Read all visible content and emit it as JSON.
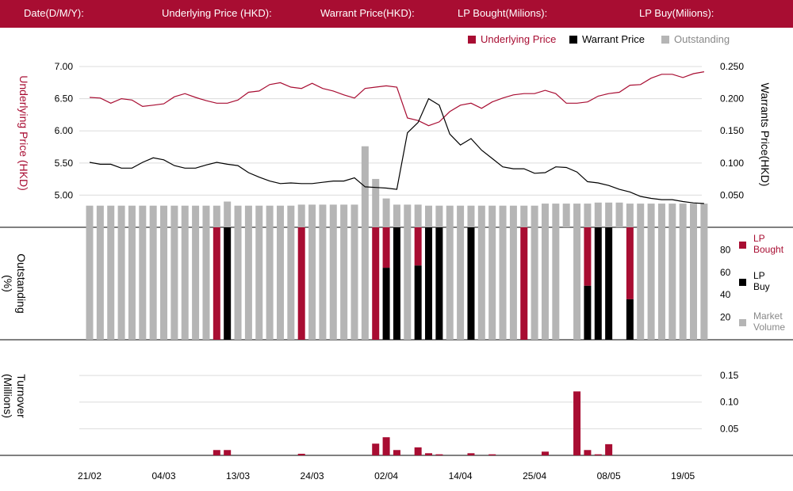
{
  "header": {
    "date_label": "Date(D/M/Y):",
    "underlying_label": "Underlying Price (HKD):",
    "warrant_label": "Warrant  Price(HKD):",
    "lp_bought_label": "LP Bought(Milions):",
    "lp_buy_label": "LP Buy(Milions):"
  },
  "legend": {
    "underlying": "Underlying Price",
    "warrant": "Warrant  Price",
    "outstanding": "Outstanding"
  },
  "colors": {
    "brand": "#a80d32",
    "underlying": "#a80d32",
    "warrant": "#000000",
    "outstanding": "#b5b5b5",
    "lp_bought": "#a80d32",
    "lp_buy": "#000000",
    "market_volume": "#b5b5b5"
  },
  "chart_data": [
    {
      "type": "line",
      "ylabel_left": "Underlying Price (HKD)",
      "ylabel_right": "Warrants  Price(HKD)",
      "yticks_left": [
        "7.00",
        "6.50",
        "6.00",
        "5.50",
        "5.00"
      ],
      "yticks_right": [
        "0.250",
        "0.200",
        "0.150",
        "0.100",
        "0.050"
      ],
      "ylim_left": [
        4.5,
        7.05
      ],
      "ylim_right": [
        0.0,
        0.255
      ],
      "x_ticks": [
        "21/02",
        "04/03",
        "13/03",
        "24/03",
        "02/04",
        "14/04",
        "25/04",
        "08/05",
        "19/05"
      ],
      "x_tick_index": [
        0,
        7,
        14,
        21,
        28,
        35,
        42,
        49,
        56
      ],
      "series": [
        {
          "name": "Underlying Price",
          "axis": "left",
          "values": [
            6.52,
            6.51,
            6.43,
            6.5,
            6.48,
            6.38,
            6.4,
            6.42,
            6.53,
            6.58,
            6.52,
            6.47,
            6.43,
            6.43,
            6.48,
            6.6,
            6.62,
            6.72,
            6.75,
            6.68,
            6.66,
            6.74,
            6.66,
            6.62,
            6.56,
            6.51,
            6.66,
            6.68,
            6.7,
            6.68,
            6.2,
            6.16,
            6.08,
            6.14,
            6.3,
            6.4,
            6.43,
            6.35,
            6.45,
            6.51,
            6.56,
            6.58,
            6.58,
            6.63,
            6.58,
            6.43,
            6.43,
            6.45,
            6.54,
            6.58,
            6.6,
            6.71,
            6.72,
            6.82,
            6.88,
            6.88,
            6.83,
            6.89,
            6.92
          ]
        },
        {
          "name": "Warrant  Price",
          "axis": "right",
          "values": [
            0.101,
            0.098,
            0.098,
            0.092,
            0.092,
            0.101,
            0.108,
            0.105,
            0.096,
            0.092,
            0.092,
            0.097,
            0.101,
            0.098,
            0.096,
            0.085,
            0.078,
            0.072,
            0.068,
            0.069,
            0.068,
            0.068,
            0.07,
            0.072,
            0.072,
            0.077,
            0.063,
            0.062,
            0.061,
            0.059,
            0.147,
            0.163,
            0.2,
            0.19,
            0.145,
            0.128,
            0.138,
            0.12,
            0.107,
            0.094,
            0.091,
            0.091,
            0.084,
            0.085,
            0.094,
            0.093,
            0.086,
            0.071,
            0.069,
            0.065,
            0.059,
            0.055,
            0.048,
            0.045,
            0.043,
            0.043,
            0.04,
            0.038,
            0.037
          ]
        }
      ]
    },
    {
      "type": "bar",
      "title": "Outstanding",
      "categories_count": 59,
      "values": [
        0,
        0,
        0,
        0,
        0,
        0,
        0,
        0,
        0,
        0,
        0,
        0,
        0,
        0,
        19,
        0,
        0,
        0,
        0,
        0,
        0,
        0,
        0,
        0,
        0,
        0,
        0,
        0,
        0,
        0,
        0,
        0,
        0,
        0,
        0,
        0,
        0,
        0,
        0,
        0,
        0,
        0,
        0,
        0,
        0,
        0,
        0,
        0,
        0,
        0,
        0,
        0,
        0,
        0,
        0,
        0,
        0,
        0,
        0
      ],
      "values_abs": [
        21,
        21,
        21,
        21,
        21,
        21,
        21,
        21,
        21,
        21,
        21,
        21,
        21,
        25,
        21,
        21,
        21,
        21,
        21,
        21,
        22,
        22,
        22,
        22,
        22,
        22,
        22,
        28,
        28,
        22,
        22,
        22,
        21,
        21,
        21,
        21,
        21,
        21,
        21,
        21,
        21,
        21,
        21,
        23,
        23,
        23,
        23,
        23,
        24,
        24,
        24,
        23,
        23,
        23,
        23,
        23,
        23,
        23,
        23
      ],
      "extra_tall": {
        "26": 62,
        "27": 37
      }
    },
    {
      "type": "bar",
      "ylabel": "Outstanding (%)",
      "yticks": [
        "80",
        "60",
        "40",
        "20"
      ],
      "ylim": [
        0,
        100
      ],
      "series": [
        {
          "name": "LP Bought",
          "values": [
            0,
            0,
            0,
            0,
            0,
            0,
            0,
            0,
            0,
            0,
            0,
            0,
            100,
            0,
            0,
            0,
            0,
            0,
            0,
            0,
            100,
            0,
            0,
            0,
            0,
            0,
            0,
            100,
            100,
            0,
            0,
            100,
            0,
            0,
            0,
            0,
            0,
            0,
            0,
            0,
            0,
            100,
            0,
            0,
            0,
            0,
            0,
            100,
            0,
            0,
            0,
            100,
            0,
            0,
            0,
            0,
            0,
            0,
            0
          ]
        },
        {
          "name": "LP Buy",
          "values": [
            0,
            0,
            0,
            0,
            0,
            0,
            0,
            0,
            0,
            0,
            0,
            0,
            0,
            100,
            0,
            0,
            0,
            0,
            0,
            0,
            0,
            0,
            0,
            0,
            0,
            0,
            0,
            0,
            64,
            100,
            0,
            66,
            100,
            100,
            0,
            0,
            100,
            0,
            0,
            0,
            0,
            0,
            0,
            0,
            0,
            0,
            0,
            48,
            100,
            100,
            0,
            36,
            0,
            0,
            0,
            0,
            0,
            0,
            0
          ]
        },
        {
          "name": "Market Volume",
          "values": [
            100,
            100,
            100,
            100,
            100,
            100,
            100,
            100,
            100,
            100,
            100,
            100,
            0,
            0,
            100,
            100,
            100,
            100,
            100,
            100,
            0,
            100,
            100,
            100,
            100,
            100,
            100,
            0,
            0,
            0,
            100,
            0,
            0,
            0,
            100,
            100,
            0,
            100,
            100,
            100,
            100,
            0,
            100,
            100,
            100,
            0,
            100,
            0,
            0,
            0,
            0,
            0,
            100,
            100,
            100,
            100,
            100,
            100,
            100
          ]
        }
      ],
      "legend": [
        "LP Bought",
        "LP Buy",
        "Market Volume"
      ]
    },
    {
      "type": "bar",
      "ylabel": "Turnover (Millions)",
      "yticks": [
        "0.15",
        "0.10",
        "0.05"
      ],
      "ylim": [
        0,
        0.165
      ],
      "values": [
        0,
        0,
        0,
        0,
        0,
        0,
        0,
        0,
        0,
        0,
        0,
        0,
        0.01,
        0.01,
        0,
        0,
        0,
        0,
        0,
        0,
        0.003,
        0,
        0,
        0,
        0,
        0,
        0,
        0.022,
        0.034,
        0.01,
        0,
        0.015,
        0.004,
        0.002,
        0,
        0,
        0.004,
        0,
        0.002,
        0,
        0,
        0,
        0,
        0.007,
        0,
        0,
        0.12,
        0.01,
        0.002,
        0.021,
        0,
        0,
        0,
        0,
        0,
        0,
        0,
        0,
        0
      ]
    }
  ]
}
